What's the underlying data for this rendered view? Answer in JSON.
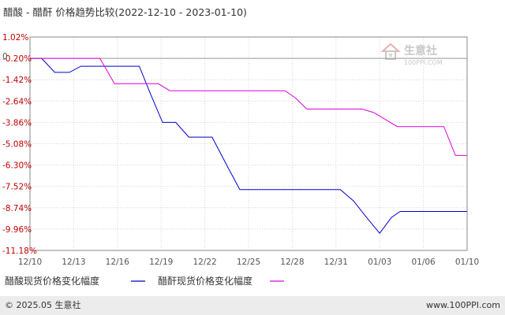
{
  "chart_data": {
    "type": "line",
    "title": "醋酸 - 醋酐 价格趋势比较(2022-12-10 - 2023-01-10)",
    "y_zero_label": "0",
    "y_ticks": [
      "1.02%",
      "-0.20%",
      "-1.42%",
      "-2.64%",
      "-3.86%",
      "-5.08%",
      "-6.30%",
      "-7.52%",
      "-8.74%",
      "-9.96%",
      "-11.18%"
    ],
    "y_tick_values": [
      1.02,
      -0.2,
      -1.42,
      -2.64,
      -3.86,
      -5.08,
      -6.3,
      -7.52,
      -8.74,
      -9.96,
      -11.18
    ],
    "ylim": [
      -11.18,
      1.02
    ],
    "x_ticks": [
      "12/10",
      "12/13",
      "12/16",
      "12/19",
      "12/22",
      "12/25",
      "12/28",
      "12/31",
      "01/03",
      "01/06",
      "01/10"
    ],
    "x_tick_days": [
      0,
      3,
      6,
      9,
      12,
      15,
      18,
      21,
      24,
      27,
      30
    ],
    "xlim_days": [
      0,
      30
    ],
    "series": [
      {
        "name": "醋酸现货价格变化幅度",
        "color": "#0000cc",
        "x_days": [
          0,
          0.8,
          1.7,
          2.7,
          3.5,
          4.5,
          5.5,
          6.5,
          7.5,
          8.3,
          9.1,
          10.0,
          10.9,
          11.7,
          12.5,
          13.5,
          14.4,
          15.3,
          16.1,
          16.9,
          17.8,
          18.6,
          19.5,
          20.4,
          21.3,
          22.2,
          23.1,
          24.0,
          24.8,
          25.4,
          26.0,
          26.8,
          27.6,
          28.5,
          29.3,
          30
        ],
        "values": [
          -0.2,
          -0.2,
          -1.0,
          -1.0,
          -0.65,
          -0.65,
          -0.65,
          -0.65,
          -0.65,
          -2.3,
          -3.86,
          -3.86,
          -4.7,
          -4.7,
          -4.7,
          -6.3,
          -7.7,
          -7.7,
          -7.7,
          -7.7,
          -7.7,
          -7.7,
          -7.7,
          -7.7,
          -7.7,
          -8.35,
          -9.3,
          -10.2,
          -9.3,
          -8.95,
          -8.95,
          -8.95,
          -8.95,
          -8.95,
          -8.95,
          -8.95
        ]
      },
      {
        "name": "醋酐现货价格变化幅度",
        "color": "#dd00dd",
        "x_days": [
          0,
          1.0,
          2.0,
          3.0,
          4.0,
          4.8,
          5.8,
          6.8,
          7.8,
          8.8,
          9.6,
          10.6,
          11.6,
          12.6,
          13.6,
          14.6,
          15.6,
          16.6,
          17.5,
          18.2,
          19.0,
          20.0,
          21.0,
          22.0,
          22.8,
          23.6,
          24.4,
          25.2,
          26.0,
          27.0,
          27.7,
          28.4,
          29.2,
          30
        ],
        "values": [
          -0.2,
          -0.2,
          -0.2,
          -0.2,
          -0.2,
          -0.2,
          -1.65,
          -1.65,
          -1.65,
          -1.65,
          -2.05,
          -2.05,
          -2.05,
          -2.05,
          -2.05,
          -2.05,
          -2.05,
          -2.05,
          -2.05,
          -2.45,
          -3.1,
          -3.1,
          -3.1,
          -3.1,
          -3.1,
          -3.3,
          -3.7,
          -4.1,
          -4.1,
          -4.1,
          -4.1,
          -4.1,
          -5.75,
          -5.75
        ]
      }
    ],
    "grid": true,
    "legend_position": "bottom-left"
  },
  "watermark": {
    "name": "生意社",
    "url": "100PPI.COM"
  },
  "footer": {
    "copyright": "© 2025.05 生意社",
    "site": "www.100PPI.com"
  }
}
